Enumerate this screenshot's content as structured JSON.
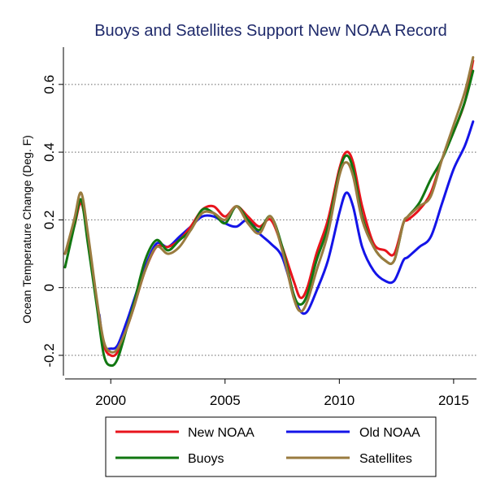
{
  "chart_data": {
    "type": "line",
    "title": "Buoys and Satellites Support New NOAA Record",
    "xlabel": "",
    "ylabel": "Ocean Temperature Change (Deg. F)",
    "xlim": [
      1998.0,
      2016.0
    ],
    "ylim": [
      -0.26,
      0.71
    ],
    "grid": true,
    "legend_position": "bottom",
    "x_ticks": [
      {
        "value": 2000,
        "label": "2000"
      },
      {
        "value": 2005,
        "label": "2005"
      },
      {
        "value": 2010,
        "label": "2010"
      },
      {
        "value": 2015,
        "label": "2015"
      }
    ],
    "y_ticks": [
      {
        "value": -0.2,
        "label": "-0.2"
      },
      {
        "value": 0,
        "label": "0"
      },
      {
        "value": 0.2,
        "label": "0.2"
      },
      {
        "value": 0.4,
        "label": "0.4"
      },
      {
        "value": 0.6,
        "label": "0.6"
      }
    ],
    "series": [
      {
        "name": "New NOAA",
        "color": "#e8141c",
        "points": [
          [
            1998.0,
            0.1
          ],
          [
            1998.4,
            0.18
          ],
          [
            1998.7,
            0.25
          ],
          [
            1999.0,
            0.15
          ],
          [
            1999.4,
            -0.05
          ],
          [
            1999.7,
            -0.17
          ],
          [
            2000.0,
            -0.2
          ],
          [
            2000.3,
            -0.19
          ],
          [
            2000.7,
            -0.12
          ],
          [
            2001.0,
            -0.06
          ],
          [
            2001.5,
            0.05
          ],
          [
            2002.0,
            0.12
          ],
          [
            2002.5,
            0.12
          ],
          [
            2003.0,
            0.14
          ],
          [
            2003.5,
            0.18
          ],
          [
            2004.0,
            0.23
          ],
          [
            2004.5,
            0.24
          ],
          [
            2005.0,
            0.21
          ],
          [
            2005.5,
            0.24
          ],
          [
            2006.0,
            0.21
          ],
          [
            2006.5,
            0.18
          ],
          [
            2007.0,
            0.2
          ],
          [
            2007.5,
            0.12
          ],
          [
            2008.0,
            0.02
          ],
          [
            2008.3,
            -0.03
          ],
          [
            2008.6,
            0.0
          ],
          [
            2009.0,
            0.1
          ],
          [
            2009.5,
            0.2
          ],
          [
            2010.0,
            0.35
          ],
          [
            2010.3,
            0.4
          ],
          [
            2010.6,
            0.37
          ],
          [
            2011.0,
            0.24
          ],
          [
            2011.5,
            0.13
          ],
          [
            2012.0,
            0.11
          ],
          [
            2012.4,
            0.1
          ],
          [
            2012.8,
            0.19
          ],
          [
            2013.0,
            0.2
          ],
          [
            2013.5,
            0.23
          ],
          [
            2014.0,
            0.28
          ],
          [
            2014.5,
            0.38
          ],
          [
            2015.0,
            0.46
          ],
          [
            2015.5,
            0.55
          ],
          [
            2015.85,
            0.67
          ]
        ]
      },
      {
        "name": "Old NOAA",
        "color": "#1414e8",
        "points": [
          [
            1999.5,
            -0.08
          ],
          [
            1999.7,
            -0.17
          ],
          [
            2000.0,
            -0.18
          ],
          [
            2000.3,
            -0.17
          ],
          [
            2000.7,
            -0.1
          ],
          [
            2001.0,
            -0.04
          ],
          [
            2001.5,
            0.06
          ],
          [
            2002.0,
            0.13
          ],
          [
            2002.5,
            0.12
          ],
          [
            2003.0,
            0.15
          ],
          [
            2003.5,
            0.18
          ],
          [
            2004.0,
            0.21
          ],
          [
            2004.5,
            0.21
          ],
          [
            2005.0,
            0.19
          ],
          [
            2005.5,
            0.18
          ],
          [
            2006.0,
            0.2
          ],
          [
            2006.5,
            0.16
          ],
          [
            2007.0,
            0.13
          ],
          [
            2007.5,
            0.09
          ],
          [
            2008.0,
            -0.02
          ],
          [
            2008.3,
            -0.07
          ],
          [
            2008.6,
            -0.07
          ],
          [
            2009.0,
            -0.01
          ],
          [
            2009.5,
            0.08
          ],
          [
            2010.0,
            0.22
          ],
          [
            2010.3,
            0.28
          ],
          [
            2010.6,
            0.24
          ],
          [
            2011.0,
            0.12
          ],
          [
            2011.5,
            0.05
          ],
          [
            2012.0,
            0.02
          ],
          [
            2012.4,
            0.02
          ],
          [
            2012.8,
            0.08
          ],
          [
            2013.0,
            0.09
          ],
          [
            2013.5,
            0.12
          ],
          [
            2014.0,
            0.15
          ],
          [
            2014.5,
            0.25
          ],
          [
            2015.0,
            0.35
          ],
          [
            2015.5,
            0.42
          ],
          [
            2015.85,
            0.49
          ]
        ]
      },
      {
        "name": "Buoys",
        "color": "#117711",
        "points": [
          [
            1998.0,
            0.06
          ],
          [
            1998.4,
            0.18
          ],
          [
            1998.7,
            0.26
          ],
          [
            1999.0,
            0.13
          ],
          [
            1999.4,
            -0.06
          ],
          [
            1999.7,
            -0.2
          ],
          [
            2000.0,
            -0.23
          ],
          [
            2000.3,
            -0.21
          ],
          [
            2000.7,
            -0.12
          ],
          [
            2001.0,
            -0.05
          ],
          [
            2001.5,
            0.08
          ],
          [
            2002.0,
            0.14
          ],
          [
            2002.5,
            0.11
          ],
          [
            2003.0,
            0.14
          ],
          [
            2003.5,
            0.17
          ],
          [
            2004.0,
            0.23
          ],
          [
            2004.5,
            0.22
          ],
          [
            2005.0,
            0.19
          ],
          [
            2005.5,
            0.24
          ],
          [
            2006.0,
            0.2
          ],
          [
            2006.5,
            0.17
          ],
          [
            2007.0,
            0.21
          ],
          [
            2007.5,
            0.12
          ],
          [
            2008.0,
            -0.02
          ],
          [
            2008.3,
            -0.05
          ],
          [
            2008.6,
            -0.02
          ],
          [
            2009.0,
            0.08
          ],
          [
            2009.5,
            0.18
          ],
          [
            2010.0,
            0.34
          ],
          [
            2010.3,
            0.39
          ],
          [
            2010.6,
            0.35
          ],
          [
            2011.0,
            0.21
          ],
          [
            2011.5,
            0.12
          ],
          [
            2012.0,
            0.08
          ],
          [
            2012.4,
            0.08
          ],
          [
            2012.8,
            0.19
          ],
          [
            2013.0,
            0.21
          ],
          [
            2013.5,
            0.25
          ],
          [
            2014.0,
            0.32
          ],
          [
            2014.5,
            0.38
          ],
          [
            2015.0,
            0.46
          ],
          [
            2015.5,
            0.55
          ],
          [
            2015.85,
            0.64
          ]
        ]
      },
      {
        "name": "Satellites",
        "color": "#9a7b3f",
        "points": [
          [
            1998.0,
            0.1
          ],
          [
            1998.4,
            0.2
          ],
          [
            1998.7,
            0.28
          ],
          [
            1999.0,
            0.16
          ],
          [
            1999.4,
            -0.04
          ],
          [
            1999.7,
            -0.16
          ],
          [
            2000.0,
            -0.19
          ],
          [
            2000.3,
            -0.18
          ],
          [
            2000.7,
            -0.12
          ],
          [
            2001.0,
            -0.06
          ],
          [
            2001.5,
            0.05
          ],
          [
            2002.0,
            0.12
          ],
          [
            2002.5,
            0.1
          ],
          [
            2003.0,
            0.12
          ],
          [
            2003.5,
            0.17
          ],
          [
            2004.0,
            0.22
          ],
          [
            2004.5,
            0.22
          ],
          [
            2005.0,
            0.2
          ],
          [
            2005.5,
            0.24
          ],
          [
            2006.0,
            0.19
          ],
          [
            2006.5,
            0.16
          ],
          [
            2007.0,
            0.21
          ],
          [
            2007.5,
            0.11
          ],
          [
            2008.0,
            -0.03
          ],
          [
            2008.3,
            -0.07
          ],
          [
            2008.6,
            -0.04
          ],
          [
            2009.0,
            0.05
          ],
          [
            2009.5,
            0.16
          ],
          [
            2010.0,
            0.33
          ],
          [
            2010.3,
            0.37
          ],
          [
            2010.6,
            0.33
          ],
          [
            2011.0,
            0.2
          ],
          [
            2011.5,
            0.12
          ],
          [
            2012.0,
            0.08
          ],
          [
            2012.4,
            0.08
          ],
          [
            2012.8,
            0.19
          ],
          [
            2013.0,
            0.21
          ],
          [
            2013.5,
            0.24
          ],
          [
            2014.0,
            0.27
          ],
          [
            2014.5,
            0.38
          ],
          [
            2015.0,
            0.48
          ],
          [
            2015.5,
            0.58
          ],
          [
            2015.85,
            0.68
          ]
        ]
      }
    ]
  }
}
